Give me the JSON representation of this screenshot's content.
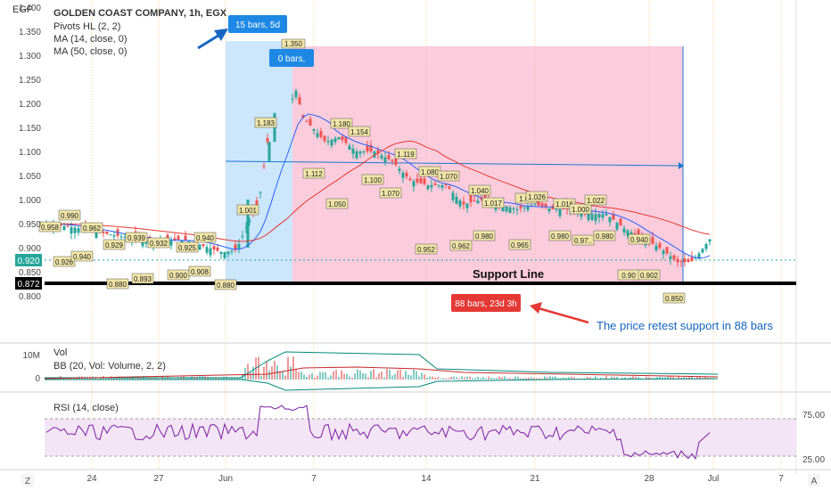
{
  "currency": "EGP",
  "legend": {
    "title": "GOLDEN COAST COMPANY, 1h, EGX",
    "lines": [
      "Pivots HL (2, 2)",
      "MA (14, close, 0)",
      "MA (50, close, 0)"
    ]
  },
  "price_axis": {
    "ticks": [
      "1.400",
      "1.350",
      "1.300",
      "1.250",
      "1.200",
      "1.150",
      "1.100",
      "1.050",
      "1.000",
      "0.950",
      "0.900",
      "0.850",
      "0.800"
    ],
    "current_price": "0.920",
    "support_price": "0.872"
  },
  "time_axis": {
    "ticks": [
      "24",
      "27",
      "Jun",
      "7",
      "14",
      "21",
      "28",
      "Jul",
      "7"
    ]
  },
  "annotations": {
    "range_label_1": "15 bars, 5d",
    "range_label_2": "0 bars,",
    "range_label_3": "88 bars, 23d 3h",
    "support_label": "Support Line",
    "retest_text": "The price retest support in 88 bars",
    "top_price": "1.350"
  },
  "pivots": {
    "highs": [
      "0.958",
      "0.990",
      "0.962",
      "0.939",
      "0.940",
      "1.001",
      "1.183",
      "1.180",
      "1.154",
      "1.119",
      "1.080",
      "1.070",
      "1.040",
      "1.017",
      "1.0..",
      "1.026",
      "1.016",
      "1.000",
      "1.022",
      "0.940"
    ],
    "lows": [
      "0.926",
      "0.940",
      "0.929",
      "0.932",
      "0.925",
      "0.880",
      "0.893",
      "0.900",
      "0.908",
      "0.880",
      "1.112",
      "1.050",
      "1.100",
      "1.070",
      "0.952",
      "0.962",
      "0.980",
      "0.965",
      "0.980",
      "0.97..",
      "0.980",
      "0.90",
      "0.902",
      "0.850"
    ]
  },
  "volume_pane": {
    "label": "Vol",
    "bb_label": "BB (20, Vol: Volume, 2, 2)",
    "ticks": [
      "10M",
      "0"
    ]
  },
  "rsi_pane": {
    "label": "RSI (14, close)",
    "ticks": [
      "75.00",
      "25.00"
    ]
  },
  "bottom_icons": {
    "left": "Z",
    "right": "A"
  },
  "colors": {
    "up": "#26a69a",
    "down": "#ef5350",
    "ma14": "#2962ff",
    "ma50": "#e53935",
    "range_blue": "#bbdefb",
    "range_pink": "#f8bbd0",
    "rsi": "#7b1fa2",
    "rsi_band": "#f3e5f5"
  }
}
